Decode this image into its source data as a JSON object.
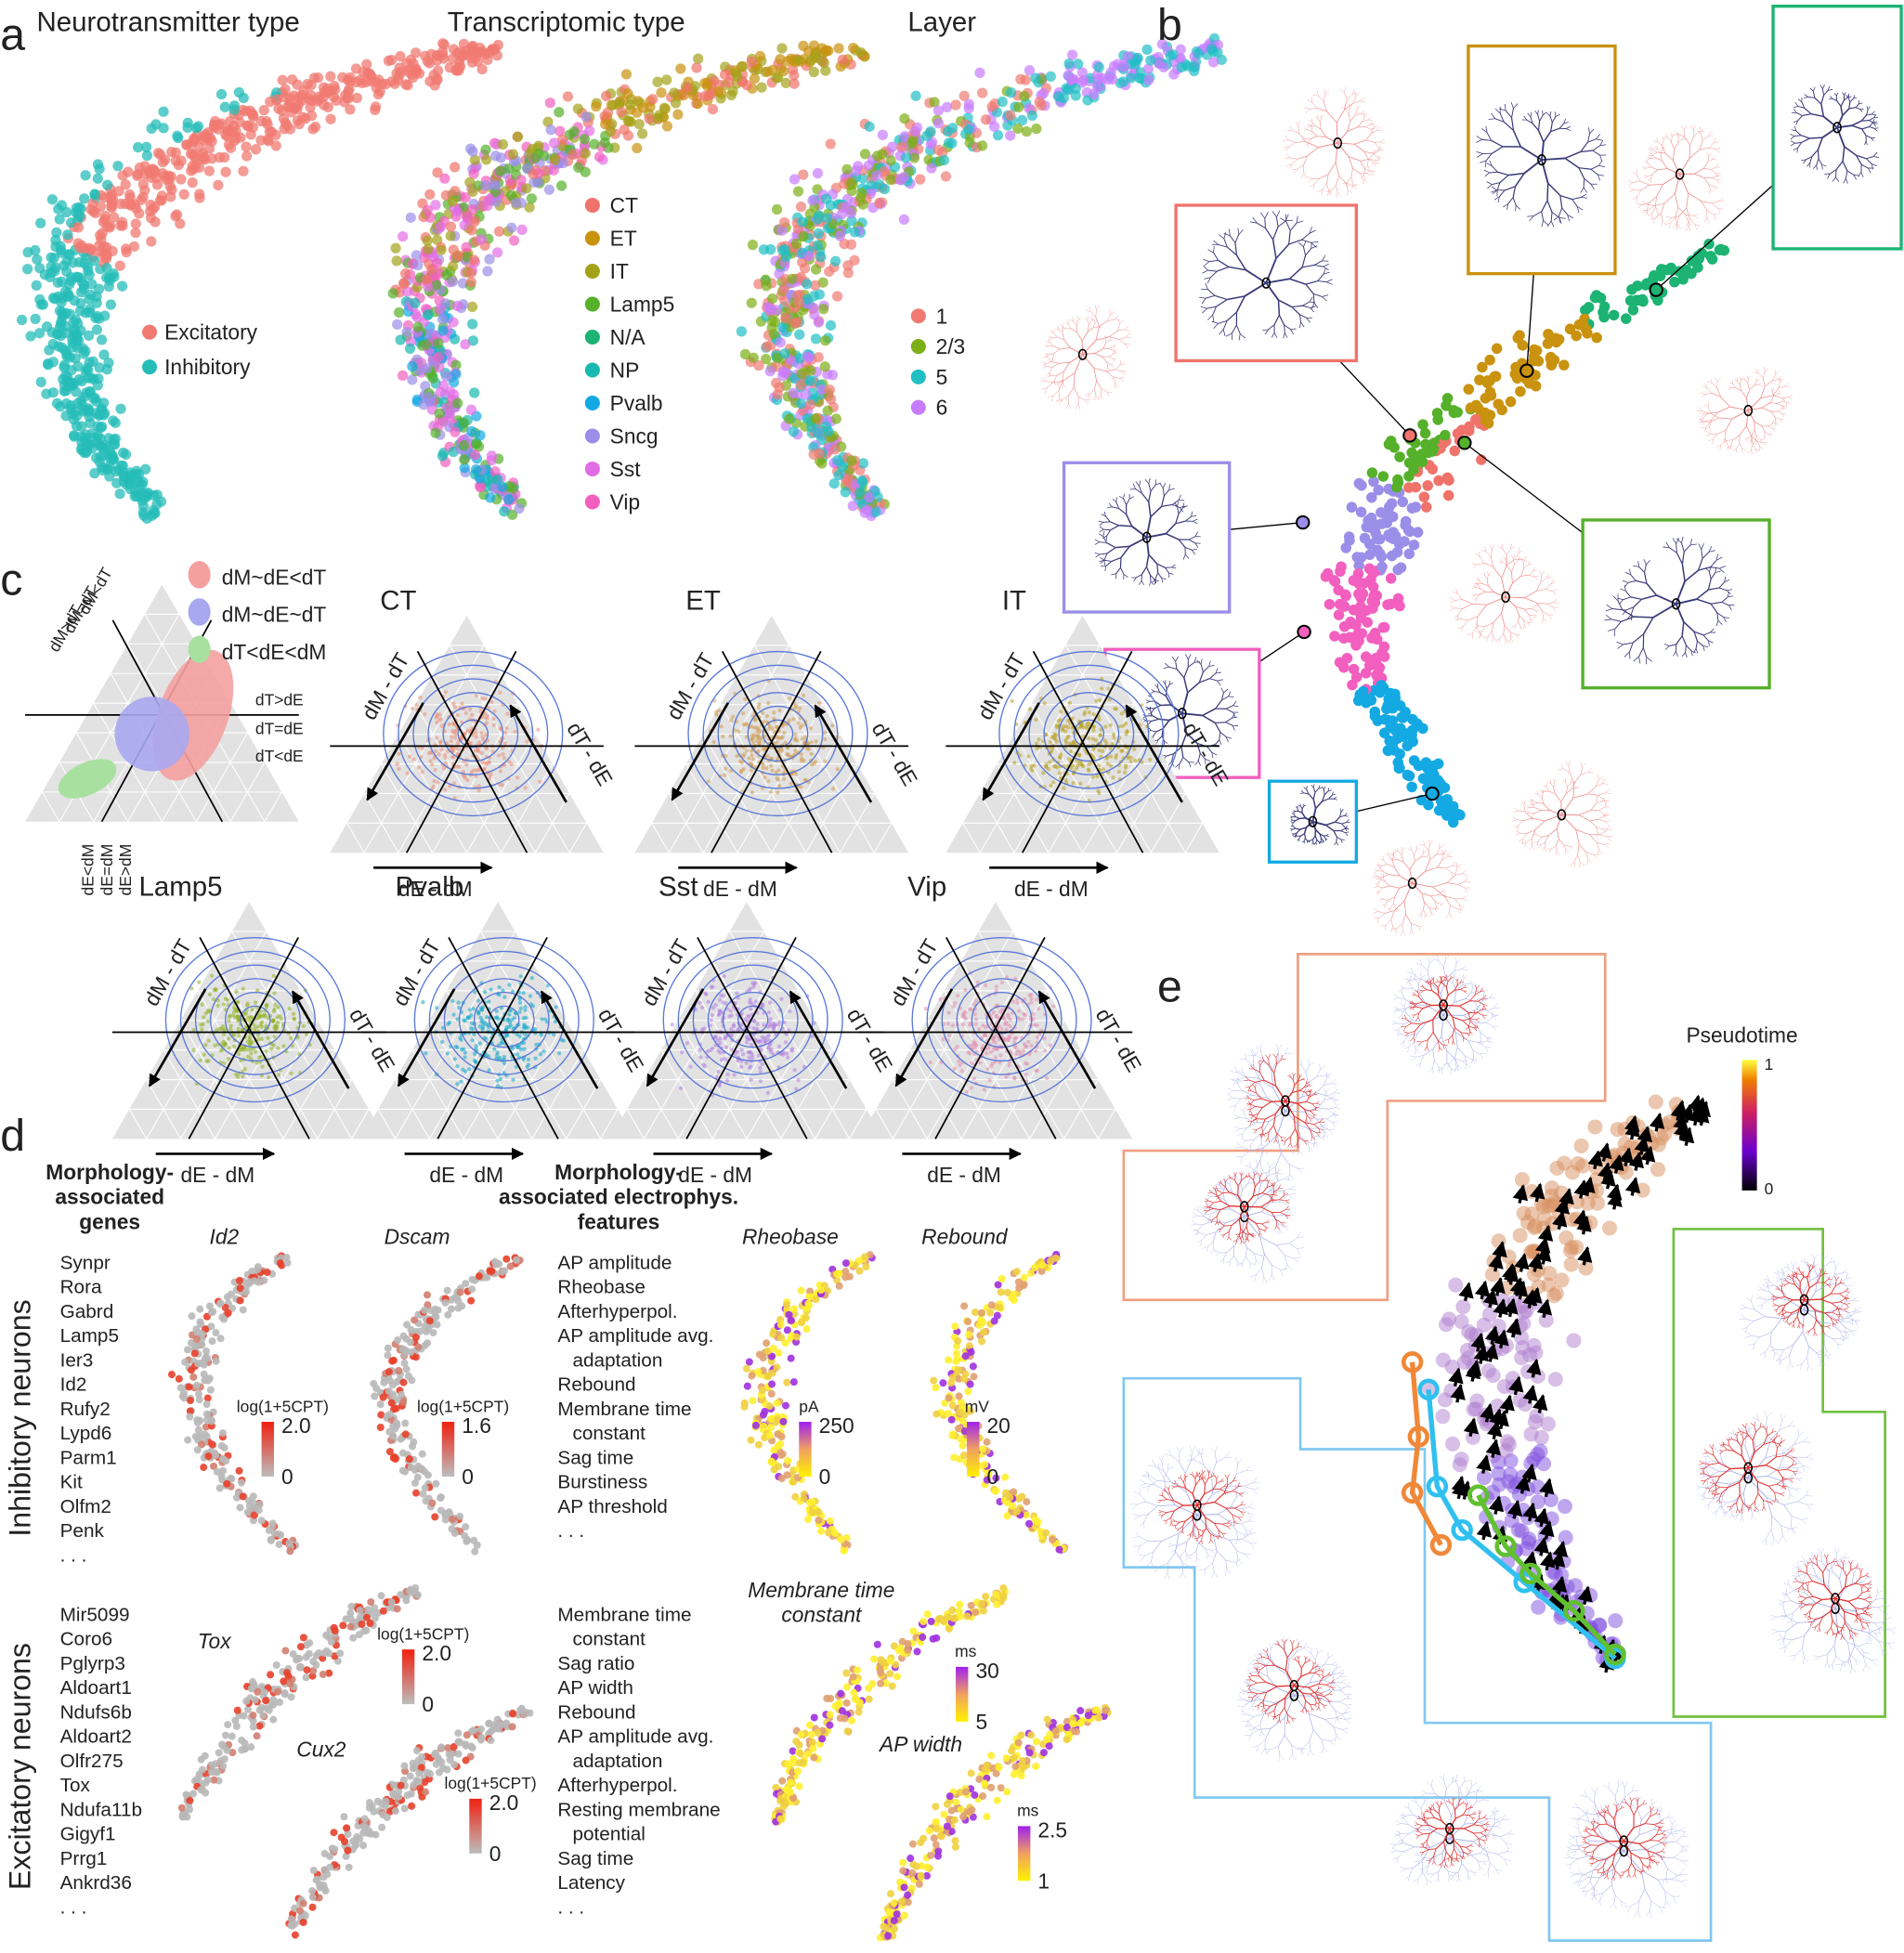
{
  "panel_a": {
    "label": "a",
    "titles": [
      "Neurotransmitter type",
      "Transcriptomic type",
      "Layer"
    ],
    "legend_nt": [
      {
        "name": "Excitatory",
        "color": "#f07a72"
      },
      {
        "name": "Inhibitory",
        "color": "#25bcb8"
      }
    ],
    "legend_tt": [
      {
        "name": "CT",
        "color": "#f0736b"
      },
      {
        "name": "ET",
        "color": "#c9920f"
      },
      {
        "name": "IT",
        "color": "#a3a31a"
      },
      {
        "name": "Lamp5",
        "color": "#55b02a"
      },
      {
        "name": "N/A",
        "color": "#1cb373"
      },
      {
        "name": "NP",
        "color": "#17b9b0"
      },
      {
        "name": "Pvalb",
        "color": "#14a9e3"
      },
      {
        "name": "Sncg",
        "color": "#9b8ee8"
      },
      {
        "name": "Sst",
        "color": "#e26de6"
      },
      {
        "name": "Vip",
        "color": "#f25fbf"
      }
    ],
    "legend_layer": [
      {
        "name": "1",
        "color": "#f07a72"
      },
      {
        "name": "2/3",
        "color": "#7cae16"
      },
      {
        "name": "5",
        "color": "#1fbfc4"
      },
      {
        "name": "6",
        "color": "#c77cff"
      }
    ]
  },
  "panel_b": {
    "label": "b"
  },
  "panel_c": {
    "label": "c",
    "legend": [
      {
        "text": "dM~dE<dT",
        "color": "#f4a0a0"
      },
      {
        "text": "dM~dE~dT",
        "color": "#a8a8f0"
      },
      {
        "text": "dT<dE<dM",
        "color": "#a8e0a0"
      }
    ],
    "guides": [
      "dM<dT",
      "dM=dT",
      "dM>dT",
      "dT>dE",
      "dT=dE",
      "dT<dE",
      "dE<dM",
      "dE=dM",
      "dE>dM"
    ],
    "axes": [
      "dM - dT",
      "dT - dE",
      "dE - dM"
    ],
    "plots": [
      {
        "title": "CT",
        "color": "#e8907a"
      },
      {
        "title": "ET",
        "color": "#d09a50"
      },
      {
        "title": "IT",
        "color": "#b8a020"
      },
      {
        "title": "Lamp5",
        "color": "#90b020"
      },
      {
        "title": "Pvalb",
        "color": "#10a8c8"
      },
      {
        "title": "Sst",
        "color": "#b080e0"
      },
      {
        "title": "Vip",
        "color": "#e090b0"
      }
    ]
  },
  "panel_d": {
    "label": "d",
    "genes_heading": [
      "Morphology-",
      "associated",
      "genes"
    ],
    "features_heading": [
      "Morphology-",
      "associated electrophys.",
      "features"
    ],
    "rows": [
      {
        "label": "Inhibitory neurons",
        "genes": [
          "Synpr",
          "Rora",
          "Gabrd",
          "Lamp5",
          "Ier3",
          "Id2",
          "Rufy2",
          "Lypd6",
          "Parm1",
          "Kit",
          "Olfm2",
          "Penk",
          ". . ."
        ],
        "features": [
          "AP amplitude",
          "Rheobase",
          "Afterhyperpol.",
          "AP amplitude avg.",
          "adaptation",
          "Rebound",
          "Membrane time",
          "constant",
          "Sag time",
          "Burstiness",
          "AP threshold",
          ". . ."
        ],
        "plots": [
          {
            "title": [
              "Id2"
            ],
            "legend_title": "log(1+5CPT)",
            "max": "2.0",
            "min": "0",
            "palette": "gr"
          },
          {
            "title": [
              "Dscam"
            ],
            "legend_title": "log(1+5CPT)",
            "max": "1.6",
            "min": "0",
            "palette": "gr"
          },
          {
            "title": [
              "Rheobase"
            ],
            "legend_title": "pA",
            "max": "250",
            "min": "0",
            "palette": "yp"
          },
          {
            "title": [
              "Rebound"
            ],
            "legend_title": "mV",
            "max": "20",
            "min": "0",
            "palette": "yp"
          }
        ]
      },
      {
        "label": "Excitatory neurons",
        "genes": [
          "Mir5099",
          "Coro6",
          "Pglyrp3",
          "Aldoart1",
          "Ndufs6b",
          "Aldoart2",
          "Olfr275",
          "Tox",
          "Ndufa11b",
          "Gigyf1",
          "Prrg1",
          "Ankrd36",
          ". . ."
        ],
        "features": [
          "Membrane time",
          "constant",
          "Sag ratio",
          "AP width",
          "Rebound",
          "AP amplitude avg.",
          "adaptation",
          "Afterhyperpol.",
          "Resting membrane",
          "potential",
          "Sag time",
          "Latency",
          ". . ."
        ],
        "plots": [
          {
            "title": [
              "Tox"
            ],
            "legend_title": "log(1+5CPT)",
            "max": "2.0",
            "min": "0",
            "palette": "gr"
          },
          {
            "title": [
              "Cux2"
            ],
            "legend_title": "log(1+5CPT)",
            "max": "2.0",
            "min": "0",
            "palette": "gr"
          },
          {
            "title": [
              "Membrane time",
              "constant"
            ],
            "legend_title": "ms",
            "max": "30",
            "min": "5",
            "palette": "yp"
          },
          {
            "title": [
              "AP width"
            ],
            "legend_title": "ms",
            "max": "2.5",
            "min": "1",
            "palette": "yp"
          }
        ]
      }
    ]
  },
  "panel_e": {
    "label": "e",
    "legend_title": "Pseudotime",
    "max": "1",
    "min": "0"
  }
}
